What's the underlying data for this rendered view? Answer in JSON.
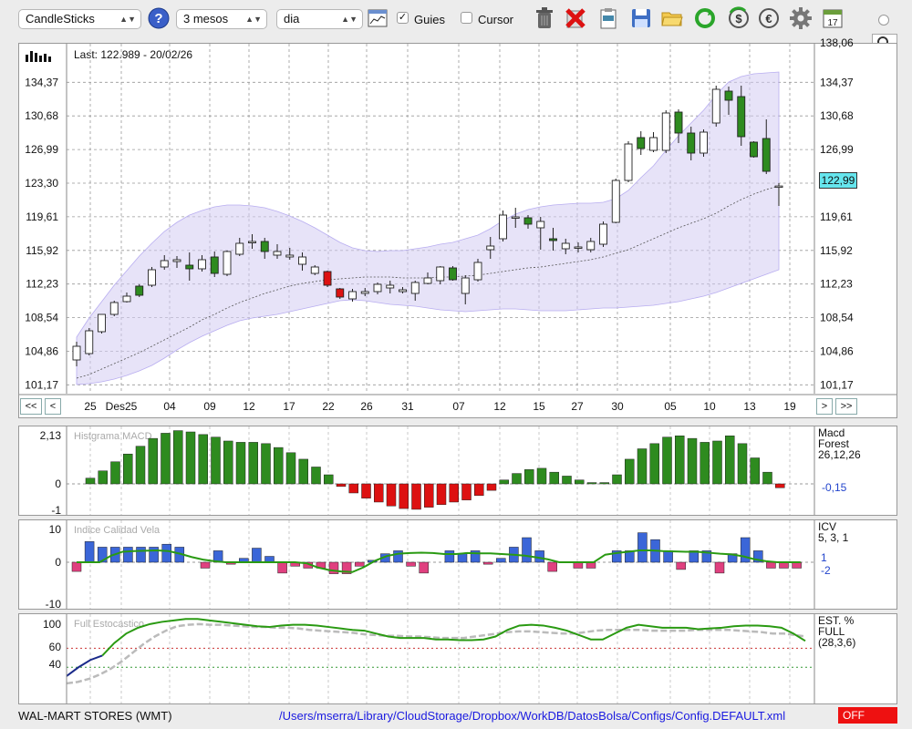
{
  "toolbar": {
    "chart_type": "CandleSticks",
    "period": "3 mesos",
    "interval": "dia",
    "guides_label": "Guies",
    "guides_checked": true,
    "cursor_label": "Cursor",
    "cursor_checked": false,
    "calendar_day": "17",
    "icons": [
      "help-icon",
      "chart-window-icon",
      "trash-icon",
      "delete-icon",
      "clipboard-icon",
      "save-icon",
      "folder-open-icon",
      "refresh-icon",
      "currency-dollar-icon",
      "currency-euro-icon",
      "gear-icon",
      "calendar-icon"
    ]
  },
  "main_chart": {
    "last_label": "Last: 122.989 - 20/02/26",
    "price_tag": "122,99",
    "y_labels": [
      "134,37",
      "130,68",
      "126,99",
      "123,30",
      "119,61",
      "115,92",
      "112,23",
      "108,54",
      "104,86",
      "101,17"
    ],
    "top_cut_label": "138,06",
    "x_labels": [
      "25",
      "Des25",
      "04",
      "09",
      "12",
      "17",
      "22",
      "26",
      "31",
      "07",
      "12",
      "15",
      "27",
      "30",
      "05",
      "10",
      "13",
      "19"
    ],
    "nav": {
      "first": "<<",
      "prev": "<",
      "next": ">",
      "last": ">>"
    }
  },
  "chart_data": [
    {
      "type": "candlestick",
      "title": "WAL-MART STORES (WMT)",
      "y_range": [
        101.17,
        137.5
      ],
      "x_tick_labels": [
        "25",
        "Des25",
        "04",
        "09",
        "12",
        "17",
        "22",
        "26",
        "31",
        "07",
        "12",
        "15",
        "27",
        "30",
        "05",
        "10",
        "13",
        "19"
      ],
      "candles": [
        {
          "o": 103.9,
          "h": 105.9,
          "l": 103.2,
          "c": 105.4
        },
        {
          "o": 104.6,
          "h": 107.4,
          "l": 104.4,
          "c": 107.1
        },
        {
          "o": 107.0,
          "h": 108.9,
          "l": 106.8,
          "c": 108.9
        },
        {
          "o": 108.9,
          "h": 110.4,
          "l": 108.7,
          "c": 110.2
        },
        {
          "o": 110.3,
          "h": 111.3,
          "l": 110.2,
          "c": 110.9
        },
        {
          "o": 111.0,
          "h": 112.2,
          "l": 110.8,
          "c": 112.0
        },
        {
          "o": 112.1,
          "h": 114.1,
          "l": 111.9,
          "c": 113.8
        },
        {
          "o": 114.1,
          "h": 115.4,
          "l": 113.8,
          "c": 114.8
        },
        {
          "o": 114.7,
          "h": 115.3,
          "l": 114.0,
          "c": 114.9
        },
        {
          "o": 114.3,
          "h": 115.7,
          "l": 112.6,
          "c": 113.9
        },
        {
          "o": 113.9,
          "h": 115.4,
          "l": 113.6,
          "c": 114.9
        },
        {
          "o": 115.2,
          "h": 115.8,
          "l": 113.0,
          "c": 113.4
        },
        {
          "o": 113.3,
          "h": 115.9,
          "l": 113.1,
          "c": 115.8
        },
        {
          "o": 115.5,
          "h": 117.3,
          "l": 115.3,
          "c": 116.7
        },
        {
          "o": 116.9,
          "h": 117.7,
          "l": 116.1,
          "c": 116.9
        },
        {
          "o": 116.9,
          "h": 117.3,
          "l": 115.0,
          "c": 115.8
        },
        {
          "o": 115.4,
          "h": 116.6,
          "l": 115.0,
          "c": 115.8
        },
        {
          "o": 115.4,
          "h": 116.2,
          "l": 114.9,
          "c": 115.2
        },
        {
          "o": 115.2,
          "h": 115.7,
          "l": 113.7,
          "c": 114.4
        },
        {
          "o": 114.1,
          "h": 114.3,
          "l": 113.2,
          "c": 113.4
        },
        {
          "o": 113.6,
          "h": 113.7,
          "l": 111.9,
          "c": 112.1
        },
        {
          "o": 111.7,
          "h": 111.8,
          "l": 110.6,
          "c": 110.8
        },
        {
          "o": 110.6,
          "h": 111.7,
          "l": 110.3,
          "c": 111.4
        },
        {
          "o": 111.2,
          "h": 111.8,
          "l": 110.9,
          "c": 111.4
        },
        {
          "o": 111.4,
          "h": 112.4,
          "l": 111.1,
          "c": 112.2
        },
        {
          "o": 112.1,
          "h": 112.6,
          "l": 111.2,
          "c": 111.8
        },
        {
          "o": 111.6,
          "h": 111.9,
          "l": 111.2,
          "c": 111.4
        },
        {
          "o": 111.2,
          "h": 112.6,
          "l": 110.4,
          "c": 112.4
        },
        {
          "o": 112.3,
          "h": 113.5,
          "l": 112.2,
          "c": 112.9
        },
        {
          "o": 112.6,
          "h": 114.2,
          "l": 112.2,
          "c": 114.1
        },
        {
          "o": 114.0,
          "h": 114.2,
          "l": 112.6,
          "c": 112.7
        },
        {
          "o": 111.2,
          "h": 113.2,
          "l": 110.0,
          "c": 112.9
        },
        {
          "o": 112.7,
          "h": 115.0,
          "l": 112.5,
          "c": 114.6
        },
        {
          "o": 116.0,
          "h": 117.4,
          "l": 115.0,
          "c": 116.4
        },
        {
          "o": 117.2,
          "h": 120.3,
          "l": 116.9,
          "c": 119.8
        },
        {
          "o": 119.6,
          "h": 120.6,
          "l": 118.4,
          "c": 119.6
        },
        {
          "o": 119.5,
          "h": 119.8,
          "l": 118.3,
          "c": 118.8
        },
        {
          "o": 118.4,
          "h": 119.6,
          "l": 116.0,
          "c": 119.1
        },
        {
          "o": 117.2,
          "h": 118.4,
          "l": 115.9,
          "c": 117.0
        },
        {
          "o": 116.7,
          "h": 117.2,
          "l": 115.5,
          "c": 116.1
        },
        {
          "o": 116.3,
          "h": 116.8,
          "l": 115.7,
          "c": 116.2
        },
        {
          "o": 116.0,
          "h": 117.3,
          "l": 115.7,
          "c": 116.9
        },
        {
          "o": 116.6,
          "h": 119.1,
          "l": 116.3,
          "c": 118.8
        },
        {
          "o": 119.0,
          "h": 123.8,
          "l": 118.9,
          "c": 123.6
        },
        {
          "o": 123.6,
          "h": 127.9,
          "l": 123.4,
          "c": 127.6
        },
        {
          "o": 127.1,
          "h": 129.0,
          "l": 126.4,
          "c": 128.3
        },
        {
          "o": 128.3,
          "h": 128.9,
          "l": 126.7,
          "c": 126.9
        },
        {
          "o": 126.9,
          "h": 131.3,
          "l": 126.6,
          "c": 131.0
        },
        {
          "o": 131.1,
          "h": 131.4,
          "l": 127.7,
          "c": 128.8
        },
        {
          "o": 128.8,
          "h": 129.5,
          "l": 125.8,
          "c": 126.6
        },
        {
          "o": 126.6,
          "h": 129.2,
          "l": 126.2,
          "c": 128.9
        },
        {
          "o": 129.9,
          "h": 134.0,
          "l": 129.5,
          "c": 133.6
        },
        {
          "o": 132.4,
          "h": 133.9,
          "l": 130.8,
          "c": 133.4
        },
        {
          "o": 132.8,
          "h": 134.0,
          "l": 127.4,
          "c": 128.4
        },
        {
          "o": 127.8,
          "h": 127.9,
          "l": 126.1,
          "c": 126.2
        },
        {
          "o": 128.2,
          "h": 130.3,
          "l": 124.3,
          "c": 124.6
        },
        {
          "o": 122.9,
          "h": 123.3,
          "l": 120.8,
          "c": 122.99
        }
      ],
      "bollinger_upper": [
        106.4,
        108.5,
        110.3,
        112.1,
        113.7,
        115.3,
        116.7,
        118.0,
        119.0,
        119.8,
        120.3,
        120.7,
        120.9,
        120.9,
        120.8,
        120.6,
        120.2,
        119.7,
        119.1,
        118.4,
        117.6,
        116.8,
        116.2,
        115.9,
        115.8,
        115.9,
        115.9,
        116.1,
        116.3,
        116.6,
        116.8,
        117.2,
        117.6,
        118.3,
        119.2,
        119.9,
        120.4,
        120.7,
        120.9,
        121.0,
        121.1,
        121.1,
        121.2,
        121.6,
        122.5,
        123.9,
        125.2,
        126.9,
        128.5,
        129.9,
        131.3,
        133.0,
        134.4,
        135.0,
        135.3,
        135.4,
        135.5
      ],
      "bollinger_lower": [
        101.2,
        101.3,
        101.5,
        101.8,
        102.2,
        102.7,
        103.3,
        104.1,
        105.0,
        105.8,
        106.5,
        107.1,
        107.7,
        108.2,
        108.5,
        108.7,
        108.9,
        109.2,
        109.5,
        109.8,
        110.1,
        110.4,
        110.5,
        110.4,
        110.2,
        110.0,
        109.9,
        109.8,
        109.6,
        109.4,
        109.3,
        109.2,
        109.3,
        109.4,
        109.5,
        109.5,
        109.4,
        109.3,
        109.3,
        109.3,
        109.4,
        109.5,
        109.6,
        109.6,
        109.7,
        109.8,
        109.9,
        110.1,
        110.3,
        110.6,
        110.9,
        111.3,
        111.8,
        112.3,
        112.8,
        113.3,
        113.8
      ],
      "sma": [
        101.9,
        102.3,
        102.9,
        103.5,
        104.1,
        104.7,
        105.4,
        106.1,
        106.8,
        107.5,
        108.3,
        108.9,
        109.6,
        110.2,
        110.7,
        111.2,
        111.6,
        112.0,
        112.3,
        112.5,
        112.7,
        112.8,
        112.9,
        113.0,
        113.0,
        113.0,
        112.9,
        112.9,
        112.9,
        113.0,
        113.0,
        113.1,
        113.2,
        113.4,
        113.6,
        113.8,
        114.0,
        114.1,
        114.3,
        114.5,
        114.7,
        114.9,
        115.2,
        115.6,
        116.0,
        116.6,
        117.2,
        117.8,
        118.4,
        118.9,
        119.4,
        120.0,
        120.8,
        121.5,
        122.1,
        122.6,
        123.0
      ]
    },
    {
      "type": "bar",
      "title": "Histgrama MACD",
      "legend": [
        "Macd",
        "Forest",
        "26,12,26"
      ],
      "current_value_label": "-0,15",
      "y_labels": [
        "2,13",
        "0",
        "-1"
      ],
      "y_range": [
        -1.15,
        2.2
      ],
      "values": [
        0.22,
        0.5,
        0.85,
        1.15,
        1.45,
        1.75,
        1.95,
        2.05,
        2.0,
        1.9,
        1.8,
        1.65,
        1.6,
        1.6,
        1.55,
        1.4,
        1.2,
        0.95,
        0.65,
        0.35,
        -0.1,
        -0.35,
        -0.55,
        -0.7,
        -0.85,
        -0.95,
        -0.98,
        -0.9,
        -0.8,
        -0.7,
        -0.62,
        -0.45,
        -0.25,
        0.15,
        0.4,
        0.55,
        0.6,
        0.45,
        0.3,
        0.15,
        0.05,
        0.05,
        0.35,
        0.95,
        1.35,
        1.55,
        1.8,
        1.85,
        1.75,
        1.6,
        1.65,
        1.85,
        1.55,
        1.0,
        0.45,
        -0.15
      ]
    },
    {
      "type": "bar",
      "title": "Indice Calidad Vela",
      "legend": [
        "ICV",
        "5, 3, 1"
      ],
      "line_labels": [
        "1",
        "-2"
      ],
      "y_labels": [
        "10",
        "0",
        "-10"
      ],
      "y_range": [
        -12,
        10
      ],
      "values": [
        -2.8,
        6.3,
        4.6,
        4.6,
        4.6,
        4.6,
        4.6,
        5.5,
        4.6,
        0,
        -1.8,
        3.5,
        -0.6,
        1.2,
        4.3,
        1.8,
        -3.3,
        -1.2,
        -1.8,
        -1.8,
        -3.5,
        -3.5,
        -1.2,
        0.6,
        2.6,
        3.5,
        -1.2,
        -3.3,
        0,
        3.5,
        2.6,
        3.5,
        -0.6,
        1.2,
        4.6,
        7.5,
        3.5,
        -2.8,
        0,
        -1.8,
        -1.8,
        0,
        3.5,
        3.5,
        9.0,
        6.9,
        3.5,
        -2.2,
        3.5,
        3.5,
        -3.3,
        2.6,
        7.5,
        3.5,
        -1.8,
        -1.8,
        -1.8
      ],
      "signal": [
        0,
        0,
        0,
        2.0,
        3.2,
        3.4,
        3.5,
        3.6,
        3.4,
        2.6,
        1.6,
        0.8,
        0.3,
        0,
        0,
        0,
        0,
        0,
        0,
        0,
        -0.3,
        -1.6,
        -2.4,
        -2.8,
        -3.0,
        -1.5,
        0.5,
        1.9,
        2.6,
        2.8,
        2.9,
        2.8,
        2.5,
        2.5,
        2.8,
        2.7,
        2.7,
        2.5,
        2.3,
        2.0,
        1.5,
        0.9,
        0,
        0,
        0,
        0,
        2.3,
        2.8,
        3.2,
        3.6,
        3.6,
        3.4,
        3.3,
        3.2,
        3.2,
        2.9,
        2.6,
        2.4,
        1.8,
        0.9,
        0.3,
        0,
        0,
        0
      ]
    },
    {
      "type": "line",
      "title": "Full Estocastico",
      "legend": [
        "EST. %",
        "FULL",
        "(28,3,6)"
      ],
      "y_labels": [
        "100",
        "60",
        "40"
      ],
      "y_range": [
        5,
        112
      ],
      "k": [
        30,
        42,
        52,
        58,
        75,
        88,
        96,
        101,
        104,
        106,
        108,
        108,
        106,
        104,
        102,
        100,
        98,
        97,
        99,
        100,
        100,
        99,
        97,
        95,
        93,
        92,
        88,
        84,
        82,
        82,
        82,
        80,
        80,
        79,
        79,
        80,
        84,
        93,
        99,
        100,
        99,
        96,
        92,
        86,
        80,
        80,
        88,
        96,
        100,
        98,
        96,
        96,
        96,
        94,
        95,
        96,
        98,
        99,
        99,
        98,
        96,
        88,
        78
      ],
      "d": [
        20,
        22,
        26,
        32,
        40,
        50,
        62,
        74,
        84,
        92,
        98,
        100,
        101,
        100,
        100,
        99,
        98,
        97,
        97,
        96,
        96,
        95,
        93,
        92,
        91,
        90,
        89,
        87,
        86,
        85,
        85,
        84,
        84,
        83,
        82,
        82,
        82,
        84,
        86,
        88,
        90,
        91,
        91,
        90,
        89,
        88,
        88,
        90,
        92,
        93,
        93,
        93,
        93,
        92,
        92,
        92,
        92,
        93,
        93,
        93,
        93,
        92,
        91,
        90,
        88,
        88,
        86,
        84
      ]
    }
  ],
  "ind_macd": {
    "title": "Histgrama MACD",
    "l1": "Macd",
    "l2": "Forest",
    "l3": "26,12,26",
    "val": "-0,15",
    "y_top": "2,13",
    "y_zero": "0",
    "y_bottom": "-1"
  },
  "ind_icv": {
    "title": "Indice Calidad Vela",
    "l1": "ICV",
    "l2": "5, 3, 1",
    "v1": "1",
    "v2": "-2",
    "y_top": "10",
    "y_zero": "0",
    "y_bottom": "-10"
  },
  "ind_stoch": {
    "title": "Full Estocastico",
    "l1": "EST. %",
    "l2": "FULL",
    "l3": "(28,3,6)",
    "y_top": "100",
    "y_60": "60",
    "y_40": "40"
  },
  "status": {
    "company": "WAL-MART STORES (WMT)",
    "config_path": "/Users/mserra/Library/CloudStorage/Dropbox/WorkDB/DatosBolsa/Configs/Config.DEFAULT.xml",
    "off_label": "OFF"
  },
  "colors": {
    "up_candle": "#2e8b1f",
    "down_candle": "#dd1111",
    "band_fill": "#d4ccf3",
    "bar_positive": "#2e8b1f",
    "bar_negative": "#dd1111",
    "icv_positive": "#3b66d8",
    "icv_negative": "#e0407f",
    "stoch_k": "#2a9a12",
    "stoch_d": "#bbbbbb",
    "price_tag_bg": "#66e6ee",
    "off_bg": "#ee1111"
  }
}
